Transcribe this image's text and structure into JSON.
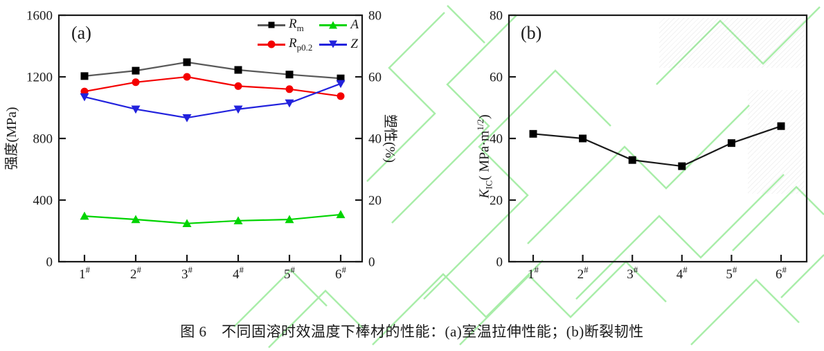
{
  "colors": {
    "background": "#ffffff",
    "axis": "#1a1a1a",
    "watermark_green": "#a9eda9",
    "series_rm_line": "#595959",
    "series_rm_marker": "#000000",
    "series_rp02": "#f40000",
    "series_a": "#00d400",
    "series_z": "#2222dd",
    "series_kic": "#1a1a1a"
  },
  "caption": "图 6　不同固溶时效温度下棒材的性能：(a)室温拉伸性能；(b)断裂韧性",
  "chart_data": [
    {
      "id": "a",
      "type": "line",
      "panel_label": "(a)",
      "categories": [
        "1",
        "2",
        "3",
        "4",
        "5",
        "6"
      ],
      "category_suffix": "#",
      "ylabel_left": "强度(MPa)",
      "ylabel_right": "塑性(%)",
      "ylim_left": [
        0,
        1600
      ],
      "yticks_left": [
        0,
        400,
        800,
        1200,
        1600
      ],
      "ylim_right": [
        0,
        80
      ],
      "yticks_right": [
        0,
        20,
        40,
        60,
        80
      ],
      "grid": false,
      "legend_position": "top-right-inside",
      "series": [
        {
          "name": "Rm",
          "label_main": "R",
          "label_sub": "m",
          "axis": "left",
          "marker": "square",
          "line_color": "#595959",
          "marker_color": "#000000",
          "values": [
            1205,
            1240,
            1295,
            1245,
            1215,
            1190
          ]
        },
        {
          "name": "Rp02",
          "label_main": "R",
          "label_sub": "p0.2",
          "axis": "left",
          "marker": "circle",
          "line_color": "#f40000",
          "marker_color": "#f40000",
          "values": [
            1105,
            1165,
            1200,
            1140,
            1120,
            1075
          ]
        },
        {
          "name": "A",
          "label_main": "A",
          "label_sub": "",
          "axis": "right",
          "marker": "triangle-up",
          "line_color": "#00d400",
          "marker_color": "#00d400",
          "values": [
            14.8,
            13.7,
            12.4,
            13.3,
            13.7,
            15.3
          ]
        },
        {
          "name": "Z",
          "label_main": "Z",
          "label_sub": "",
          "axis": "right",
          "marker": "triangle-down",
          "line_color": "#2222dd",
          "marker_color": "#2222dd",
          "values": [
            53.5,
            49.5,
            46.7,
            49.5,
            51.5,
            57.8
          ]
        }
      ]
    },
    {
      "id": "b",
      "type": "line",
      "panel_label": "(b)",
      "categories": [
        "1",
        "2",
        "3",
        "4",
        "5",
        "6"
      ],
      "category_suffix": "#",
      "ylabel": {
        "pre": "K",
        "sub": "IC",
        "mid": "( MPa·m",
        "sup": "1/2",
        "post": ")"
      },
      "ylim": [
        0,
        80
      ],
      "yticks": [
        0,
        20,
        40,
        60,
        80
      ],
      "grid": false,
      "series": [
        {
          "name": "KIC",
          "label_main": "K",
          "label_sub": "IC",
          "axis": "left",
          "marker": "square",
          "line_color": "#1a1a1a",
          "marker_color": "#000000",
          "values": [
            41.5,
            40,
            33,
            31,
            38.5,
            44
          ]
        }
      ]
    }
  ]
}
